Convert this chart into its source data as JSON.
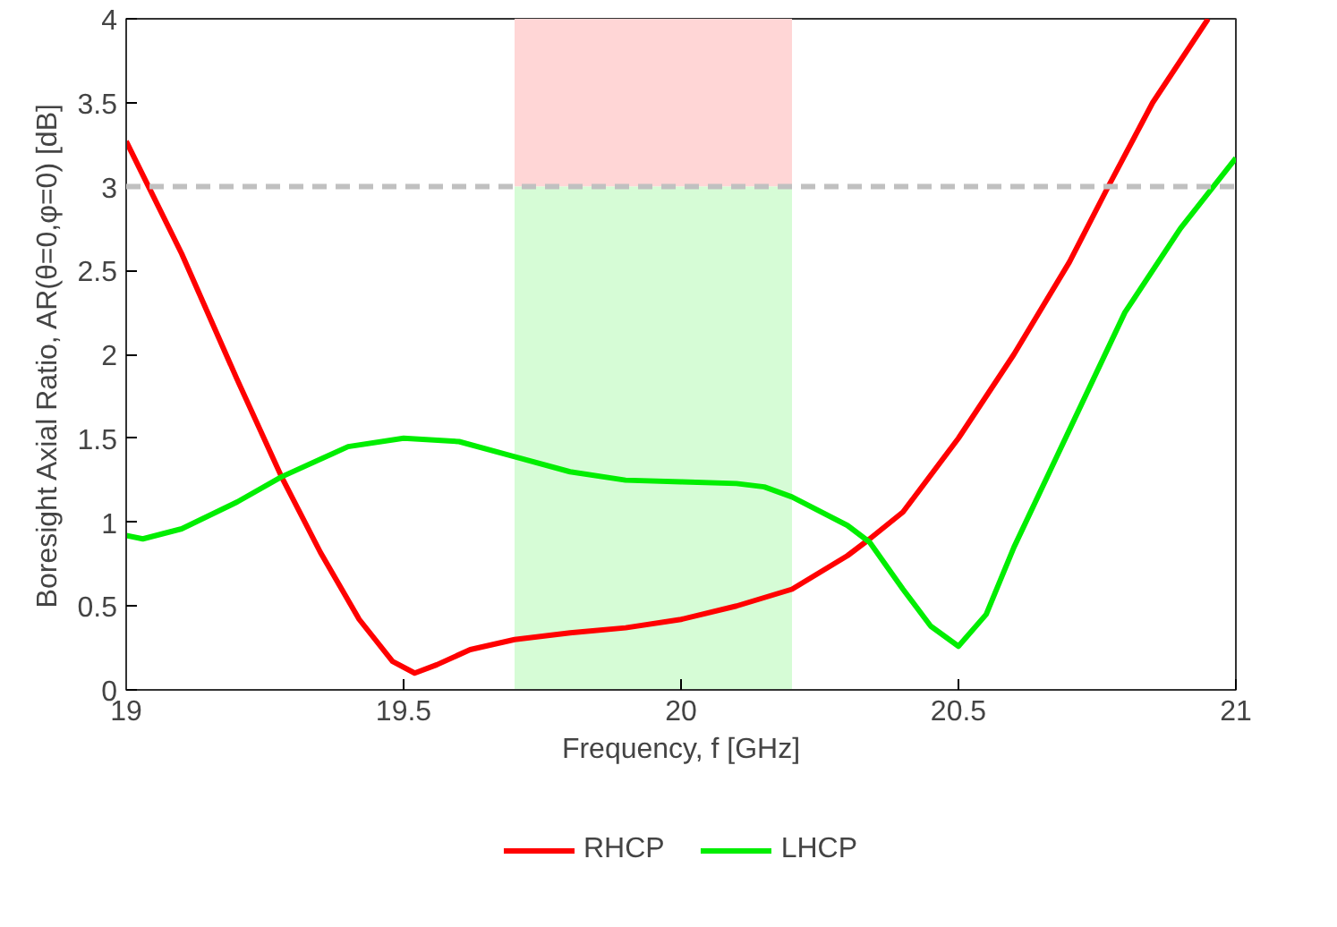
{
  "chart_data": {
    "type": "line",
    "xlabel": "Frequency, f [GHz]",
    "ylabel": "Boresight Axial Ratio, AR(θ=0,φ=0) [dB]",
    "xlim": [
      19,
      21
    ],
    "ylim": [
      0,
      4
    ],
    "xticks": [
      19,
      19.5,
      20,
      20.5,
      21
    ],
    "yticks": [
      0,
      0.5,
      1,
      1.5,
      2,
      2.5,
      3,
      3.5,
      4
    ],
    "grid": false,
    "legend": "bottom",
    "line_style": "solid",
    "marker": "none",
    "ref_lines": [
      {
        "axis": "y",
        "value": 3,
        "color": "#c0c0c0",
        "line_style": "dashed"
      }
    ],
    "bands": [
      {
        "axis": "x",
        "from": 19.7,
        "to": 20.2,
        "color": "#ffd6d6"
      },
      {
        "axis": "x",
        "from": 19.7,
        "to": 20.2,
        "color": "#d6fcd6"
      }
    ],
    "series": [
      {
        "name": "RHCP",
        "color": "#ff0000",
        "x": [
          19.0,
          19.1,
          19.2,
          19.28,
          19.35,
          19.42,
          19.48,
          19.52,
          19.56,
          19.62,
          19.7,
          19.8,
          19.9,
          20.0,
          20.1,
          20.2,
          20.3,
          20.34,
          20.4,
          20.5,
          20.6,
          20.7,
          20.77,
          20.85,
          20.95
        ],
        "values": [
          3.27,
          2.6,
          1.85,
          1.27,
          0.82,
          0.42,
          0.17,
          0.1,
          0.15,
          0.24,
          0.3,
          0.34,
          0.37,
          0.42,
          0.5,
          0.6,
          0.8,
          0.9,
          1.06,
          1.5,
          2.0,
          2.55,
          3.0,
          3.5,
          4.0
        ]
      },
      {
        "name": "LHCP",
        "color": "#00ee00",
        "x": [
          19.0,
          19.03,
          19.1,
          19.2,
          19.28,
          19.4,
          19.5,
          19.6,
          19.7,
          19.8,
          19.9,
          20.0,
          20.1,
          20.15,
          20.2,
          20.3,
          20.34,
          20.4,
          20.45,
          20.5,
          20.55,
          20.6,
          20.7,
          20.8,
          20.9,
          21.0
        ],
        "values": [
          0.92,
          0.9,
          0.96,
          1.12,
          1.27,
          1.45,
          1.5,
          1.48,
          1.39,
          1.3,
          1.25,
          1.24,
          1.23,
          1.21,
          1.15,
          0.98,
          0.88,
          0.6,
          0.38,
          0.26,
          0.45,
          0.85,
          1.55,
          2.25,
          2.75,
          3.17
        ]
      }
    ]
  }
}
